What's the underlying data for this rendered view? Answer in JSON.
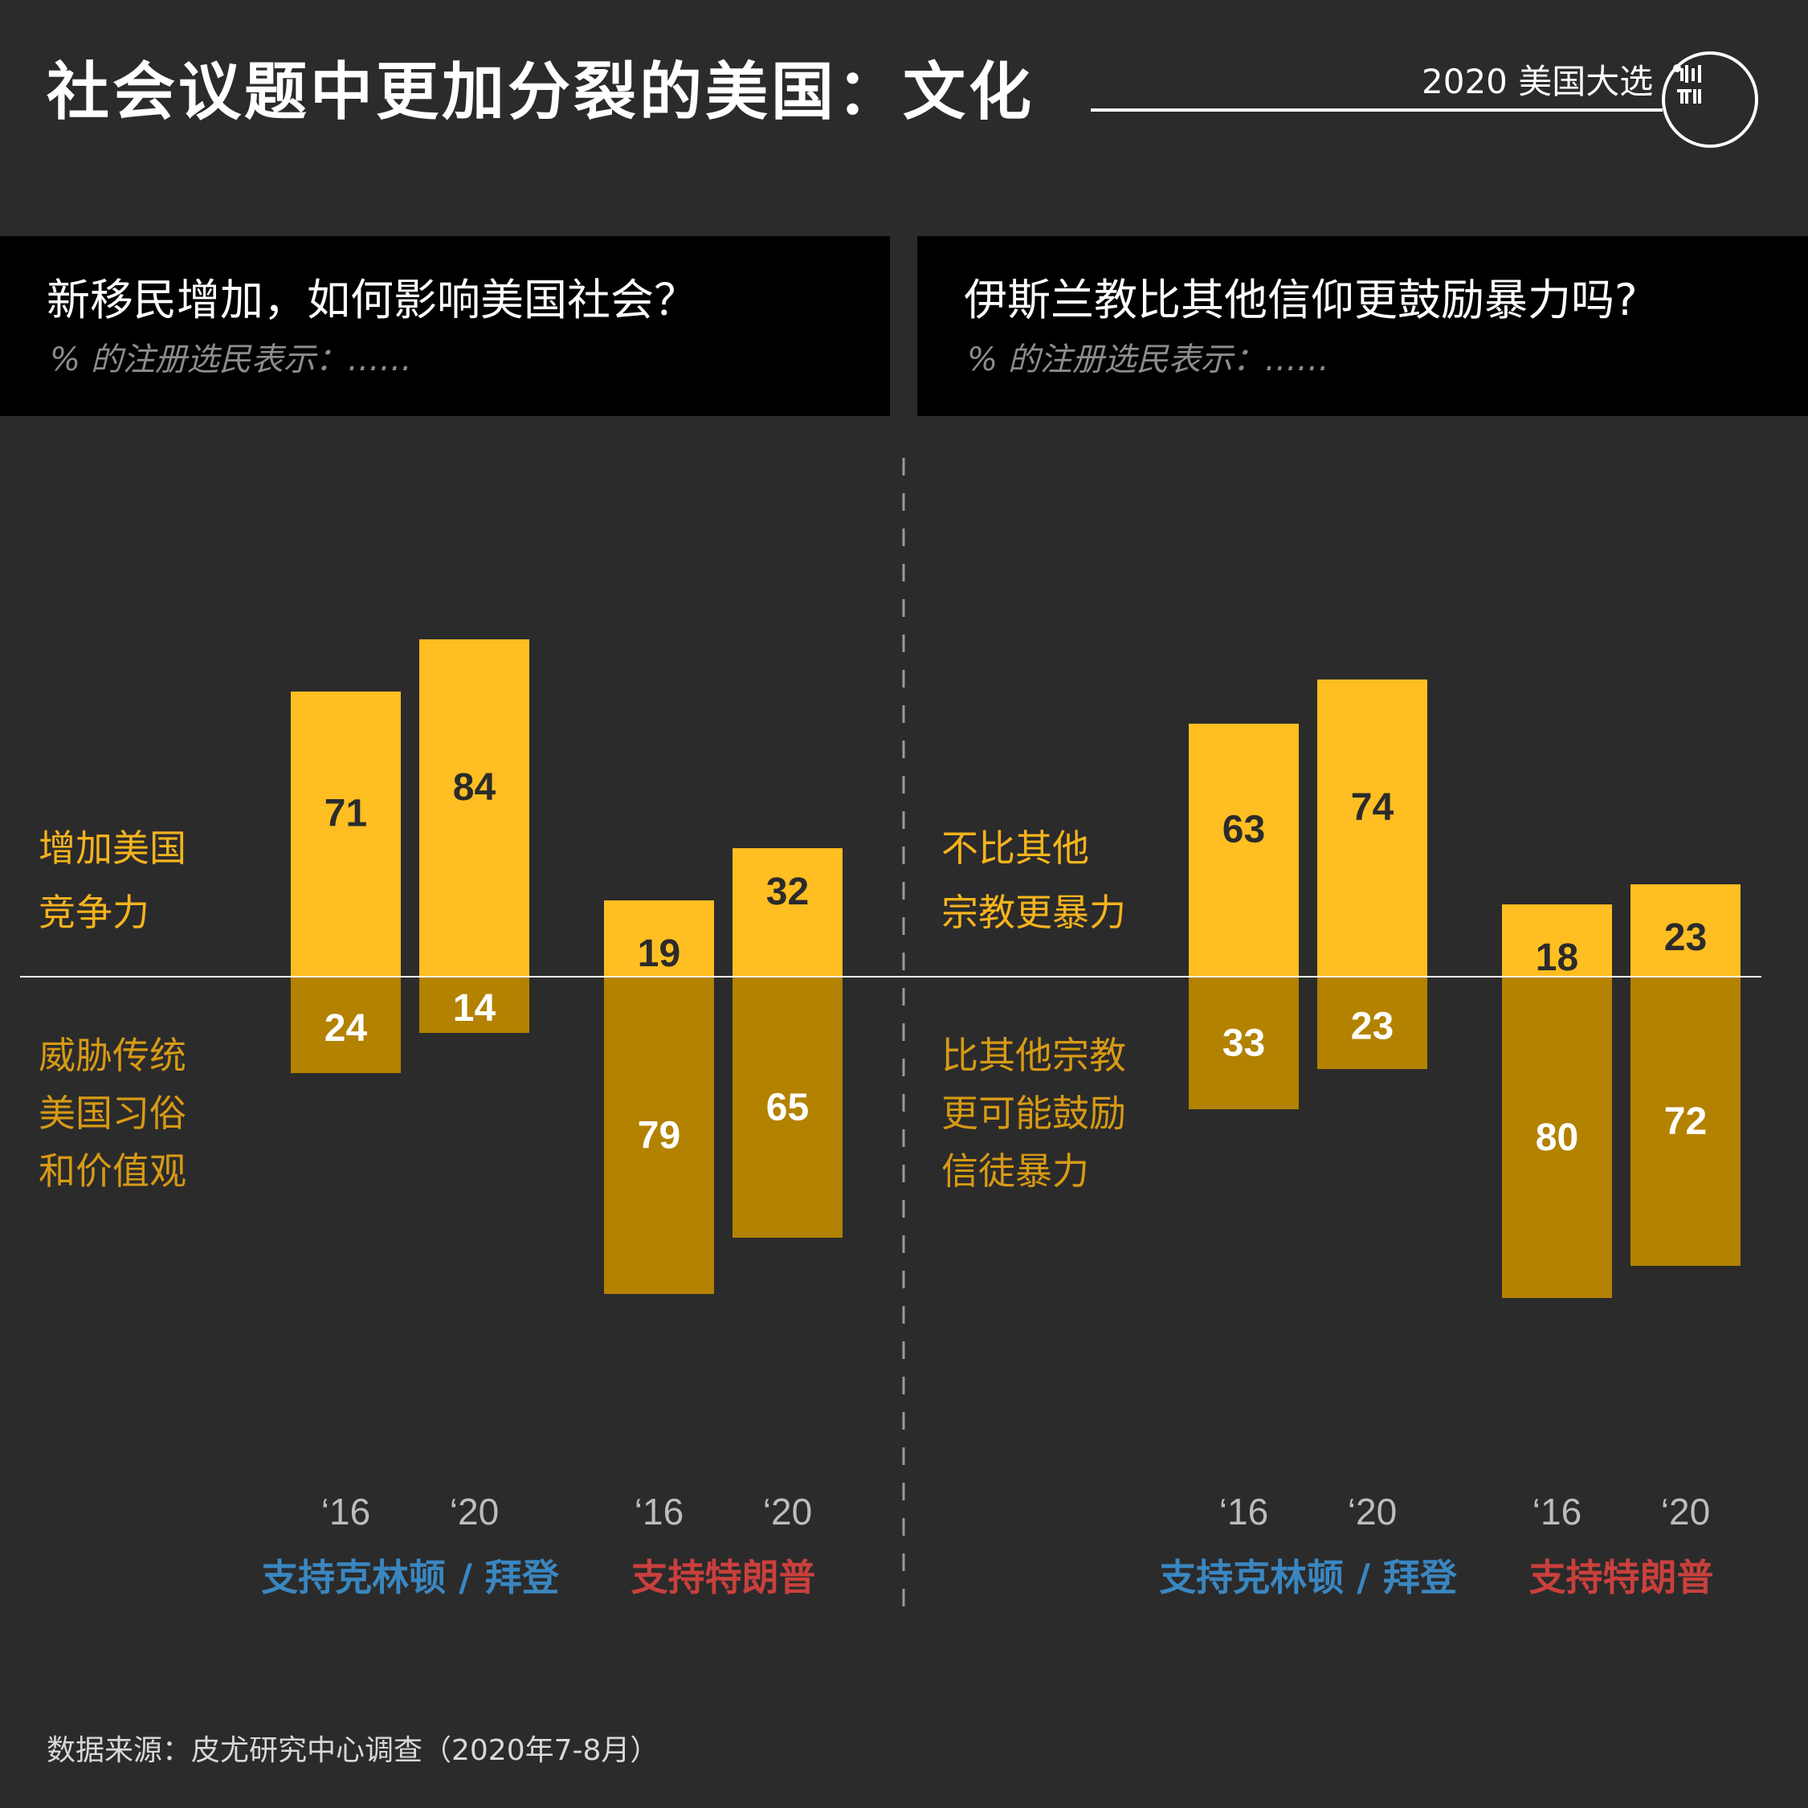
{
  "header": {
    "title": "社会议题中更加分裂的美国：文化",
    "brand": "2020 美国大选",
    "logo_icon": "端-logo-icon"
  },
  "panels": [
    {
      "question": "新移民增加，如何影响美国社会？",
      "subtitle": "% 的注册选民表示：……",
      "label_positive": [
        "增加美国",
        "竞争力"
      ],
      "label_negative": [
        "威胁传统",
        "美国习俗",
        "和价值观"
      ]
    },
    {
      "question": "伊斯兰教比其他信仰更鼓励暴力吗?",
      "subtitle": "% 的注册选民表示：……",
      "label_positive": [
        "不比其他",
        "宗教更暴力"
      ],
      "label_negative": [
        "比其他宗教",
        "更可能鼓励",
        "信徒暴力"
      ]
    }
  ],
  "footer": {
    "source": "数据来源：皮尤研究中心调查（2020年7-8月）"
  },
  "colors": {
    "background": "#2b2b2b",
    "positive_bar": "#ffbe22",
    "negative_bar": "#b38200",
    "positive_label": "#f5b31d",
    "negative_label": "#d79a14",
    "group_clinton_biden": "#3a86c0",
    "group_trump": "#c9403c",
    "tick_label": "#bdbdbd",
    "divider": "#9a9a9a"
  },
  "chart_data": [
    {
      "type": "bar",
      "title": "新移民增加，如何影响美国社会？",
      "groups": [
        {
          "name": "支持克林顿 / 拜登",
          "categories": [
            "‘16",
            "‘20"
          ]
        },
        {
          "name": "支持特朗普",
          "categories": [
            "‘16",
            "‘20"
          ]
        }
      ],
      "series": [
        {
          "name": "增加美国竞争力",
          "values": [
            71,
            84,
            19,
            32
          ]
        },
        {
          "name": "威胁传统美国习俗和价值观",
          "values": [
            24,
            14,
            79,
            65
          ]
        }
      ]
    },
    {
      "type": "bar",
      "title": "伊斯兰教比其他信仰更鼓励暴力吗?",
      "groups": [
        {
          "name": "支持克林顿 / 拜登",
          "categories": [
            "‘16",
            "‘20"
          ]
        },
        {
          "name": "支持特朗普",
          "categories": [
            "‘16",
            "‘20"
          ]
        }
      ],
      "series": [
        {
          "name": "不比其他宗教更暴力",
          "values": [
            63,
            74,
            18,
            23
          ]
        },
        {
          "name": "比其他宗教更可能鼓励信徒暴力",
          "values": [
            33,
            23,
            80,
            72
          ]
        }
      ]
    }
  ]
}
